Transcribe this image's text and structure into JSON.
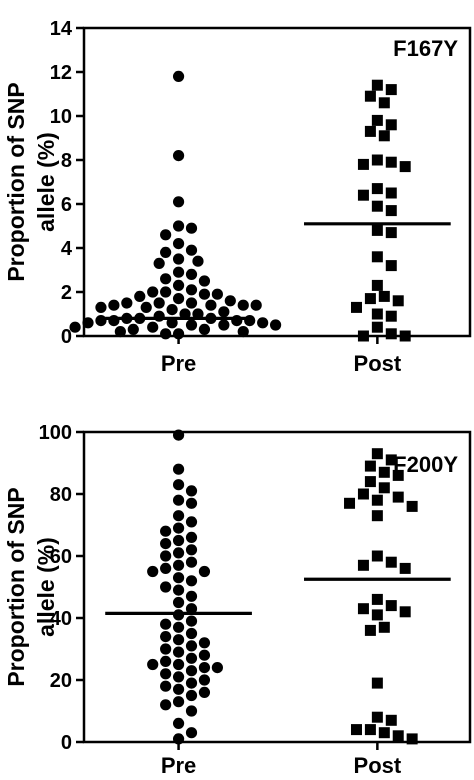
{
  "chart_data": [
    {
      "type": "scatter",
      "title": "F167Y",
      "ylabel_lines": [
        "Proportion of SNP",
        "allele (%)"
      ],
      "categories": [
        "Pre",
        "Post"
      ],
      "ylim": [
        0,
        14
      ],
      "yticks": [
        "0",
        "2",
        "4",
        "6",
        "8",
        "10",
        "12",
        "14"
      ],
      "series": [
        {
          "category": "Pre",
          "marker": "circle",
          "values": [
            11.8,
            8.2,
            6.1,
            5.0,
            4.9,
            4.6,
            4.2,
            3.9,
            3.8,
            3.5,
            3.4,
            3.3,
            2.9,
            2.8,
            2.6,
            2.5,
            2.3,
            2.1,
            2.0,
            2.0,
            1.9,
            1.9,
            1.8,
            1.7,
            1.6,
            1.5,
            1.5,
            1.5,
            1.4,
            1.4,
            1.4,
            1.4,
            1.3,
            1.3,
            1.2,
            1.1,
            1.0,
            1.0,
            0.9,
            0.8,
            0.8,
            0.8,
            0.7,
            0.7,
            0.7,
            0.7,
            0.6,
            0.6,
            0.6,
            0.5,
            0.5,
            0.5,
            0.4,
            0.4,
            0.3,
            0.3,
            0.2,
            0.2,
            0.1,
            0.1
          ],
          "line": 0.8
        },
        {
          "category": "Post",
          "marker": "square",
          "values": [
            11.4,
            11.2,
            10.9,
            10.6,
            9.8,
            9.6,
            9.3,
            9.1,
            8.0,
            7.9,
            7.8,
            7.7,
            6.7,
            6.5,
            6.4,
            5.9,
            5.7,
            4.8,
            4.7,
            3.6,
            3.2,
            2.3,
            1.8,
            1.7,
            1.6,
            1.3,
            1.0,
            0.9,
            0.4,
            0.1,
            0.0,
            0.0
          ],
          "line": 5.1
        }
      ]
    },
    {
      "type": "scatter",
      "title": "F200Y",
      "ylabel_lines": [
        "Proportion of SNP",
        "allele (%)"
      ],
      "categories": [
        "Pre",
        "Post"
      ],
      "ylim": [
        0,
        100
      ],
      "yticks": [
        "0",
        "20",
        "40",
        "60",
        "80",
        "100"
      ],
      "series": [
        {
          "category": "Pre",
          "marker": "circle",
          "values": [
            99,
            88,
            83,
            81,
            78,
            77,
            73,
            71,
            69,
            68,
            66,
            65,
            64,
            62,
            61,
            60,
            58,
            57,
            56,
            55,
            55,
            53,
            52,
            50,
            49,
            47,
            45,
            43,
            41,
            39,
            38,
            37,
            35,
            34,
            33,
            32,
            31,
            30,
            29,
            28,
            27,
            26,
            25,
            25,
            24,
            24,
            23,
            22,
            21,
            20,
            19,
            18,
            17,
            16,
            15,
            13,
            12,
            10,
            6,
            3,
            1
          ],
          "line": 41.5
        },
        {
          "category": "Post",
          "marker": "square",
          "values": [
            93,
            91,
            89,
            87,
            86,
            84,
            82,
            80,
            79,
            78,
            77,
            76,
            73,
            60,
            58,
            57,
            56,
            46,
            44,
            43,
            42,
            41,
            37,
            36,
            19,
            8,
            7,
            4,
            4,
            3,
            2,
            1
          ],
          "line": 52.5
        }
      ]
    }
  ]
}
